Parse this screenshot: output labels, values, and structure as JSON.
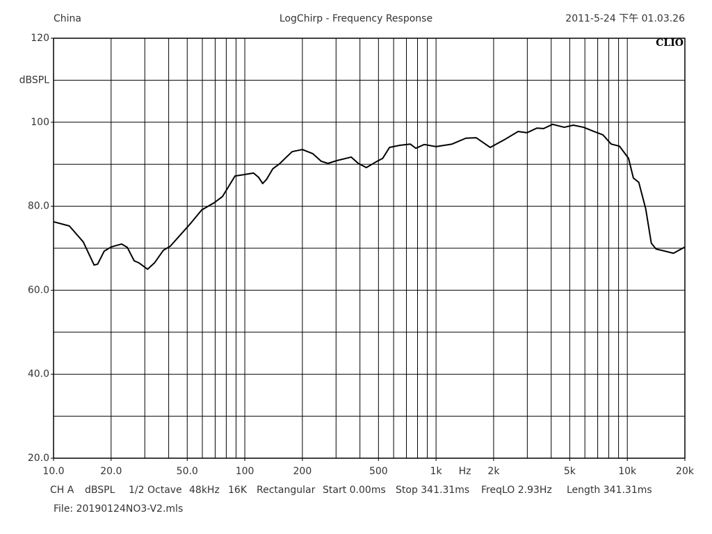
{
  "chart_data": {
    "type": "line",
    "title": "LogChirp - Frequency Response",
    "header_left": "China",
    "header_right": "2011-5-24 下午 01.03.26",
    "logo": "CLIO",
    "xlabel": "Hz",
    "ylabel": "dBSPL",
    "xscale": "log",
    "xlim": [
      10,
      20000
    ],
    "ylim": [
      20,
      120
    ],
    "xticks": [
      {
        "value": 10,
        "label": "10.0"
      },
      {
        "value": 20,
        "label": "20.0"
      },
      {
        "value": 50,
        "label": "50.0"
      },
      100,
      200,
      500,
      {
        "value": 1000,
        "label": "1k"
      },
      {
        "value": 2000,
        "label": "2k"
      },
      {
        "value": 5000,
        "label": "5k"
      },
      {
        "value": 10000,
        "label": "10k"
      },
      {
        "value": 20000,
        "label": "20k"
      }
    ],
    "yticks": [
      {
        "value": 20,
        "label": "20.0"
      },
      {
        "value": 40,
        "label": "40.0"
      },
      {
        "value": 60,
        "label": "60.0"
      },
      {
        "value": 80,
        "label": "80.0"
      },
      100,
      120
    ],
    "xgrid": [
      20,
      30,
      40,
      50,
      60,
      70,
      80,
      90,
      100,
      200,
      300,
      400,
      500,
      600,
      700,
      800,
      900,
      1000,
      2000,
      3000,
      4000,
      5000,
      6000,
      7000,
      8000,
      9000,
      10000
    ],
    "ygrid": [
      30,
      40,
      50,
      60,
      70,
      80,
      90,
      100,
      110
    ],
    "grid": true,
    "series": [
      {
        "name": "CH A",
        "color": "#000000",
        "x": [
          10,
          12.1,
          14.3,
          16.3,
          17,
          18.4,
          20,
          22.7,
          24.3,
          26.4,
          28,
          31,
          33.7,
          37.5,
          40.8,
          46.3,
          52.5,
          59.5,
          69,
          76.4,
          88.9,
          98.5,
          111,
          118,
          124,
          130,
          140,
          152,
          165,
          177,
          200,
          227,
          251,
          272,
          305,
          360,
          392,
          432,
          483,
          526,
          571,
          646,
          733,
          784,
          867,
          1000,
          1212,
          1432,
          1623,
          1920,
          2269,
          2685,
          2990,
          3364,
          3652,
          4067,
          4680,
          5217,
          5908,
          6691,
          7453,
          8237,
          9100,
          10150,
          10760,
          11480,
          12480,
          13350,
          14150,
          15770,
          17420,
          20000
        ],
        "values": [
          76.3,
          75.3,
          71.5,
          66.0,
          66.2,
          69.3,
          70.3,
          71.0,
          70.2,
          67.0,
          66.5,
          65.0,
          66.5,
          69.5,
          70.5,
          73.3,
          76.1,
          79.1,
          80.8,
          82.3,
          87.2,
          87.5,
          87.9,
          86.9,
          85.4,
          86.4,
          88.9,
          90.1,
          91.7,
          93.0,
          93.5,
          92.5,
          90.7,
          90.2,
          90.9,
          91.7,
          90.2,
          89.2,
          90.5,
          91.4,
          94.0,
          94.5,
          94.8,
          93.8,
          94.7,
          94.2,
          94.8,
          96.2,
          96.3,
          94.0,
          95.8,
          97.8,
          97.5,
          98.6,
          98.5,
          99.5,
          98.8,
          99.3,
          98.8,
          97.8,
          97.0,
          94.8,
          94.3,
          91.4,
          86.7,
          85.7,
          79.4,
          71.2,
          69.8,
          69.3,
          68.8,
          70.3
        ]
      }
    ],
    "footer": [
      "CH A",
      "dBSPL",
      "1/2 Octave",
      "48kHz",
      "16K",
      "Rectangular",
      "Start 0.00ms",
      "Stop 341.31ms",
      "FreqLO 2.93Hz",
      "Length 341.31ms"
    ],
    "file": "File: 20190124NO3-V2.mls"
  }
}
